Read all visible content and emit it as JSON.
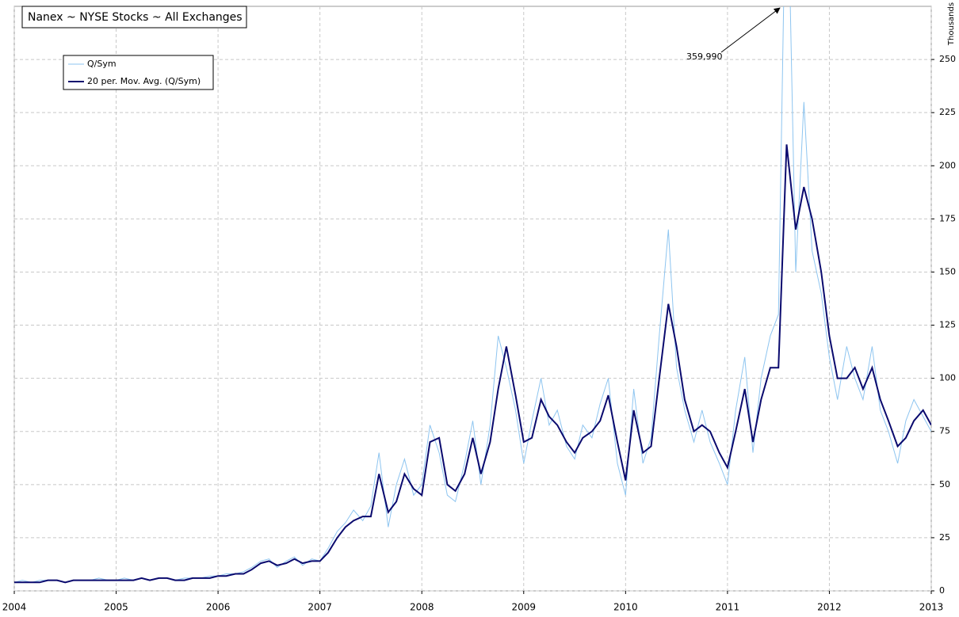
{
  "chart_data": {
    "type": "line",
    "title": "Nanex ~ NYSE Stocks ~ All Exchanges",
    "y_axis_label": "Thousands",
    "annotation": {
      "text": "359,990"
    },
    "x": [
      2004.0,
      2004.08,
      2004.17,
      2004.25,
      2004.33,
      2004.42,
      2004.5,
      2004.58,
      2004.67,
      2004.75,
      2004.83,
      2004.92,
      2005.0,
      2005.08,
      2005.17,
      2005.25,
      2005.33,
      2005.42,
      2005.5,
      2005.58,
      2005.67,
      2005.75,
      2005.83,
      2005.92,
      2006.0,
      2006.08,
      2006.17,
      2006.25,
      2006.33,
      2006.42,
      2006.5,
      2006.58,
      2006.67,
      2006.75,
      2006.83,
      2006.92,
      2007.0,
      2007.08,
      2007.17,
      2007.25,
      2007.33,
      2007.42,
      2007.5,
      2007.58,
      2007.67,
      2007.75,
      2007.83,
      2007.92,
      2008.0,
      2008.08,
      2008.17,
      2008.25,
      2008.33,
      2008.42,
      2008.5,
      2008.58,
      2008.67,
      2008.75,
      2008.83,
      2008.92,
      2009.0,
      2009.08,
      2009.17,
      2009.25,
      2009.33,
      2009.42,
      2009.5,
      2009.58,
      2009.67,
      2009.75,
      2009.83,
      2009.92,
      2010.0,
      2010.08,
      2010.17,
      2010.25,
      2010.33,
      2010.42,
      2010.5,
      2010.58,
      2010.67,
      2010.75,
      2010.83,
      2010.92,
      2011.0,
      2011.08,
      2011.17,
      2011.25,
      2011.33,
      2011.42,
      2011.5,
      2011.58,
      2011.67,
      2011.75,
      2011.83,
      2011.92,
      2012.0,
      2012.08,
      2012.17,
      2012.25,
      2012.33,
      2012.42,
      2012.5,
      2012.58,
      2012.67,
      2012.75,
      2012.83,
      2012.92,
      2013.0
    ],
    "series": [
      {
        "name": "Q/Sym",
        "color": "#8ec5f0",
        "width": 1,
        "values": [
          4,
          5,
          4,
          5,
          5,
          5,
          4,
          5,
          5,
          5,
          6,
          5,
          5,
          6,
          5,
          6,
          5,
          6,
          6,
          5,
          6,
          6,
          6,
          7,
          7,
          8,
          8,
          9,
          11,
          14,
          15,
          11,
          14,
          16,
          12,
          15,
          14,
          20,
          28,
          32,
          38,
          33,
          40,
          65,
          30,
          50,
          62,
          45,
          50,
          78,
          65,
          45,
          42,
          60,
          80,
          50,
          78,
          120,
          105,
          85,
          60,
          80,
          100,
          78,
          85,
          68,
          62,
          78,
          72,
          88,
          100,
          60,
          45,
          95,
          60,
          72,
          120,
          170,
          105,
          85,
          70,
          85,
          70,
          60,
          50,
          85,
          110,
          65,
          100,
          120,
          130,
          359.99,
          150,
          230,
          160,
          140,
          110,
          90,
          115,
          100,
          90,
          115,
          85,
          75,
          60,
          80,
          90,
          82,
          75
        ]
      },
      {
        "name": "20 per. Mov. Avg. (Q/Sym)",
        "color": "#0a0a6e",
        "width": 2,
        "values": [
          4,
          4,
          4,
          4,
          5,
          5,
          4,
          5,
          5,
          5,
          5,
          5,
          5,
          5,
          5,
          6,
          5,
          6,
          6,
          5,
          5,
          6,
          6,
          6,
          7,
          7,
          8,
          8,
          10,
          13,
          14,
          12,
          13,
          15,
          13,
          14,
          14,
          18,
          25,
          30,
          33,
          35,
          35,
          55,
          37,
          42,
          55,
          48,
          45,
          70,
          72,
          50,
          47,
          55,
          72,
          55,
          70,
          95,
          115,
          92,
          70,
          72,
          90,
          82,
          78,
          70,
          65,
          72,
          75,
          80,
          92,
          70,
          52,
          85,
          65,
          68,
          100,
          135,
          115,
          90,
          75,
          78,
          75,
          65,
          58,
          75,
          95,
          70,
          90,
          105,
          105,
          210,
          170,
          190,
          175,
          150,
          120,
          100,
          100,
          105,
          95,
          105,
          90,
          80,
          68,
          72,
          80,
          85,
          78
        ]
      }
    ],
    "xlim": [
      2004,
      2013
    ],
    "xticks": [
      2004,
      2005,
      2006,
      2007,
      2008,
      2009,
      2010,
      2011,
      2012,
      2013
    ],
    "ylim": [
      0,
      275
    ],
    "yticks": [
      0,
      25,
      50,
      75,
      100,
      125,
      150,
      175,
      200,
      225,
      250
    ],
    "grid": true,
    "legend": "upper left"
  }
}
